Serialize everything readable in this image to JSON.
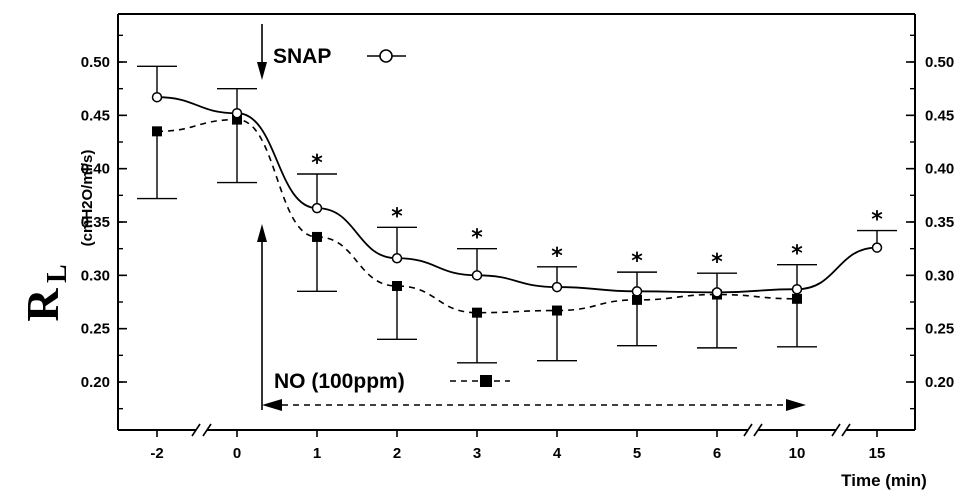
{
  "chart_data": {
    "type": "line",
    "xlabel": "Time (min)",
    "ylabel_main": "R",
    "ylabel_sub": "L",
    "ylabel_units": "(cmH2O/ml/s)",
    "x_ticks": [
      "-2",
      "0",
      "1",
      "2",
      "3",
      "4",
      "5",
      "6",
      "10",
      "15"
    ],
    "y_ticks": [
      "0.20",
      "0.25",
      "0.30",
      "0.35",
      "0.40",
      "0.45",
      "0.50"
    ],
    "ylim": [
      0.155,
      0.545
    ],
    "series": [
      {
        "name": "SNAP",
        "marker": "open-circle",
        "line": "solid",
        "values": [
          0.467,
          0.452,
          0.363,
          0.316,
          0.3,
          0.289,
          0.285,
          0.284,
          0.287,
          0.326
        ],
        "err_upper": [
          0.496,
          0.475,
          0.395,
          0.345,
          0.325,
          0.308,
          0.303,
          0.302,
          0.31,
          0.342
        ]
      },
      {
        "name": "NO (100ppm)",
        "marker": "filled-square",
        "line": "dashed",
        "values": [
          0.435,
          0.446,
          0.336,
          0.29,
          0.265,
          0.267,
          0.277,
          0.282,
          0.278,
          null
        ],
        "err_lower": [
          0.372,
          0.387,
          0.285,
          0.24,
          0.218,
          0.22,
          0.234,
          0.232,
          0.233,
          null
        ]
      }
    ],
    "significance_marker": "*",
    "significant_indices": [
      2,
      3,
      4,
      5,
      6,
      7,
      8,
      9
    ]
  }
}
